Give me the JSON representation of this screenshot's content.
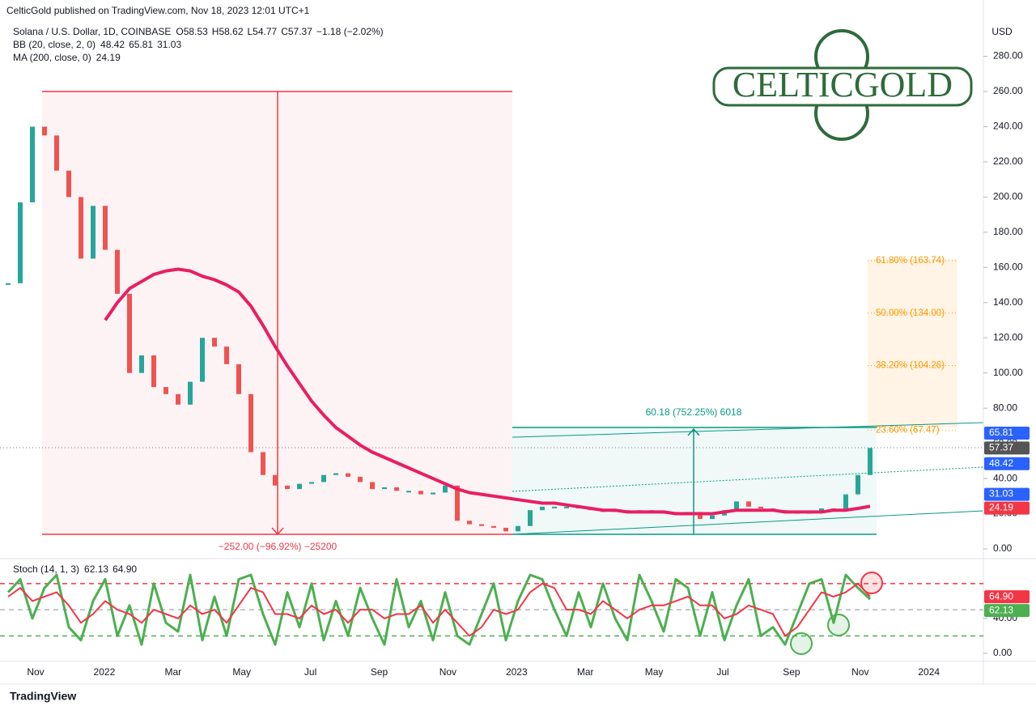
{
  "header": {
    "publisher": "CelticGold published on TradingView.com, Nov 18, 2023 12:01 UTC+1",
    "brand": "TradingView",
    "logo": "CELTICGOLD",
    "currency": "USD"
  },
  "chart_data": [
    {
      "type": "candlestick",
      "title": "Solana / U.S. Dollar, 1D, COINBASE",
      "ohlc": [
        "O58.53",
        "H58.62",
        "L54.77",
        "C57.37",
        "−1.18 (−2.02%)"
      ],
      "colors": {
        "up": "#26a69a",
        "down": "#ef5350"
      },
      "bb": {
        "name": "BB (20, close, 2, 0)",
        "readings": [
          "48.42",
          "65.81",
          "31.03"
        ]
      },
      "values": [
        151,
        197,
        240,
        235,
        215,
        200,
        165,
        195,
        170,
        145,
        100,
        110,
        92,
        88,
        82,
        95,
        120,
        115,
        105,
        88,
        55,
        42,
        36,
        34,
        37,
        38,
        42,
        43,
        41,
        38,
        34,
        35,
        33,
        33,
        31,
        32,
        36,
        16,
        14,
        13,
        12,
        10,
        13,
        22,
        24,
        24,
        24,
        23,
        22,
        21,
        22,
        22,
        22,
        21,
        21,
        20,
        21,
        17,
        19,
        22,
        27,
        24,
        23,
        22,
        21,
        20,
        21,
        23,
        22,
        31,
        42,
        57.37
      ],
      "series": [
        {
          "name": "MA (200, close, 0)",
          "reading": "24.19",
          "color": "#e91e63",
          "values": [
            null,
            null,
            null,
            null,
            null,
            null,
            null,
            null,
            130,
            140,
            148,
            152,
            156,
            158,
            159,
            158,
            155,
            153,
            150,
            146,
            138,
            127,
            115,
            104,
            94,
            84,
            76,
            69,
            64,
            59,
            55,
            52,
            49,
            46,
            43,
            40,
            37,
            34,
            32,
            31,
            30,
            29,
            28,
            27,
            26,
            26,
            25,
            24,
            23,
            22,
            22,
            21,
            21,
            21,
            21,
            20,
            20,
            20,
            20,
            21,
            22,
            22,
            22,
            22,
            21,
            21,
            21,
            21,
            22,
            22,
            23,
            24.19
          ]
        }
      ],
      "xticks": [
        "Nov",
        "2022",
        "Mar",
        "May",
        "Jul",
        "Sep",
        "Nov",
        "2023",
        "Mar",
        "May",
        "Jul",
        "Sep",
        "Nov",
        "2024"
      ],
      "ylim": [
        -4.6,
        312
      ],
      "yticks": [
        {
          "value": 0,
          "label": "0.00"
        },
        {
          "value": 20,
          "label": "20.00"
        },
        {
          "value": 40,
          "label": "40.00"
        },
        {
          "value": 60,
          "label": "60.00"
        },
        {
          "value": 80,
          "label": "80.00"
        },
        {
          "value": 100,
          "label": "100.00"
        },
        {
          "value": 120,
          "label": "120.00"
        },
        {
          "value": 140,
          "label": "140.00"
        },
        {
          "value": 160,
          "label": "160.00"
        },
        {
          "value": 180,
          "label": "180.00"
        },
        {
          "value": 200,
          "label": "200.00"
        },
        {
          "value": 220,
          "label": "220.00"
        },
        {
          "value": 240,
          "label": "240.00"
        },
        {
          "value": 260,
          "label": "260.00"
        },
        {
          "value": 280,
          "label": "280.00"
        }
      ],
      "price_tags": [
        {
          "value": 65.81,
          "label": "65.81",
          "color": "#2962ff"
        },
        {
          "value": 57.37,
          "label": "57.37",
          "color": "#555555"
        },
        {
          "value": 48.42,
          "label": "48.42",
          "color": "#2962ff"
        },
        {
          "value": 31.03,
          "label": "31.03",
          "color": "#2962ff"
        },
        {
          "value": 24.19,
          "label": "24.19",
          "color": "#f23645"
        }
      ],
      "measures": [
        "−252.00 (−96.92%) −25200",
        "60.18 (752.25%) 6018"
      ],
      "fib_levels": [
        {
          "value": 163.74,
          "label": "61.80% (163.74)"
        },
        {
          "value": 134.0,
          "label": "50.00% (134.00)"
        },
        {
          "value": 104.26,
          "label": "38.20% (104.26)"
        },
        {
          "value": 67.47,
          "label": "23.60% (67.47)"
        }
      ]
    },
    {
      "type": "line",
      "title": "Stoch (14, 1, 3)",
      "series": [
        {
          "reading": "62.13",
          "color": "#4caf50",
          "values": [
            70,
            85,
            40,
            75,
            90,
            30,
            15,
            60,
            85,
            20,
            55,
            10,
            80,
            35,
            25,
            90,
            15,
            65,
            20,
            85,
            90,
            45,
            10,
            70,
            30,
            80,
            15,
            60,
            20,
            75,
            40,
            10,
            85,
            30,
            60,
            15,
            70,
            20,
            10,
            45,
            80,
            15,
            60,
            90,
            85,
            50,
            20,
            70,
            30,
            80,
            40,
            15,
            90,
            60,
            25,
            85,
            75,
            20,
            70,
            15,
            55,
            85,
            20,
            30,
            10,
            45,
            80,
            85,
            35,
            90,
            75,
            62.13
          ]
        },
        {
          "reading": "64.90",
          "color": "#f23645",
          "values": [
            65,
            75,
            60,
            65,
            70,
            55,
            35,
            45,
            60,
            50,
            45,
            35,
            50,
            45,
            40,
            55,
            45,
            50,
            35,
            55,
            75,
            70,
            45,
            45,
            40,
            55,
            45,
            50,
            35,
            50,
            50,
            40,
            45,
            45,
            55,
            35,
            50,
            35,
            20,
            30,
            50,
            45,
            50,
            70,
            80,
            75,
            50,
            50,
            45,
            60,
            50,
            40,
            50,
            55,
            55,
            60,
            65,
            55,
            55,
            40,
            45,
            55,
            50,
            45,
            20,
            30,
            50,
            70,
            65,
            70,
            80,
            64.9
          ]
        }
      ],
      "ylim": [
        -9.3,
        104
      ],
      "yticks": [
        {
          "value": 0,
          "label": "0.00"
        },
        {
          "value": 40,
          "label": "40.00"
        }
      ],
      "levels": [
        {
          "value": 80,
          "color": "#f23645"
        },
        {
          "value": 50,
          "color": "#b2b5be"
        },
        {
          "value": 20,
          "color": "#4caf50"
        }
      ],
      "price_tags": [
        {
          "value": 64.9,
          "label": "64.90",
          "color": "#f23645"
        },
        {
          "value": 62.13,
          "label": "62.13",
          "color": "#4caf50"
        }
      ]
    }
  ]
}
